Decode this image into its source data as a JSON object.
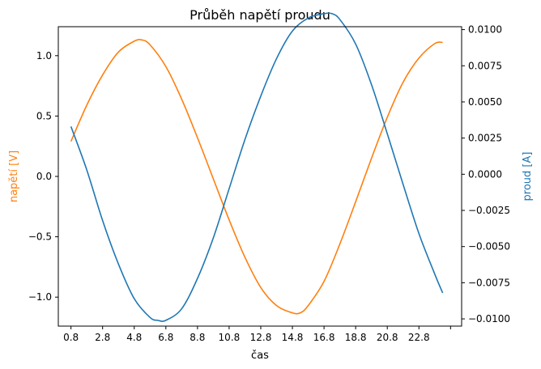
{
  "chart_data": {
    "type": "line",
    "title": "Průběh napětí proudu",
    "xlabel": "čas",
    "ylabel_left": "napětí [V]",
    "ylabel_right": "proud [A]",
    "xlim": [
      0.0,
      25.5
    ],
    "ylim_left": [
      -1.24,
      1.24
    ],
    "ylim_right": [
      -0.0105,
      0.0102
    ],
    "x_ticks": [
      "0.8",
      "2.8",
      "4.8",
      "6.8",
      "8.8",
      "10.8",
      "12.8",
      "14.8",
      "16.8",
      "18.8",
      "20.8",
      "22.8",
      ""
    ],
    "y_ticks_left": [
      "1.0",
      "0.5",
      "0.0",
      "−0.5",
      "−1.0"
    ],
    "y_ticks_right": [
      "0.0100",
      "0.0075",
      "0.0050",
      "0.0025",
      "0.0000",
      "−0.0025",
      "−0.0050",
      "−0.0075",
      "−0.0100"
    ],
    "grid": false,
    "colors": {
      "voltage": "#ff7f0e",
      "current": "#1f77b4"
    },
    "series": [
      {
        "axis": "left",
        "color": "#ff7f0e",
        "x": [
          0.8,
          1.8,
          2.8,
          3.8,
          4.8,
          5.3,
          5.8,
          6.8,
          7.8,
          8.8,
          9.8,
          10.8,
          11.8,
          12.8,
          13.8,
          14.8,
          15.3,
          15.8,
          16.8,
          17.8,
          18.8,
          19.8,
          20.8,
          21.8,
          22.8,
          23.8,
          24.3
        ],
        "values": [
          0.29,
          0.59,
          0.84,
          1.03,
          1.12,
          1.13,
          1.09,
          0.91,
          0.64,
          0.32,
          -0.02,
          -0.36,
          -0.67,
          -0.92,
          -1.07,
          -1.13,
          -1.13,
          -1.07,
          -0.87,
          -0.56,
          -0.21,
          0.15,
          0.49,
          0.78,
          0.98,
          1.1,
          1.11
        ]
      },
      {
        "axis": "right",
        "color": "#1f77b4",
        "x": [
          0.8,
          1.8,
          2.8,
          3.8,
          4.8,
          5.8,
          6.3,
          6.8,
          7.8,
          8.8,
          9.8,
          10.8,
          11.8,
          12.8,
          13.8,
          14.8,
          15.8,
          16.8,
          17.3,
          17.8,
          18.8,
          19.8,
          20.8,
          21.8,
          22.8,
          23.8,
          24.3
        ],
        "values": [
          0.0033,
          0.0003,
          -0.0032,
          -0.0062,
          -0.0086,
          -0.0099,
          -0.0101,
          -0.0101,
          -0.0093,
          -0.0072,
          -0.0044,
          -0.001,
          0.0024,
          0.0054,
          0.008,
          0.0099,
          0.0108,
          0.0111,
          0.0111,
          0.0107,
          0.009,
          0.0062,
          0.0028,
          -0.0007,
          -0.0041,
          -0.0069,
          -0.0082
        ]
      }
    ]
  }
}
